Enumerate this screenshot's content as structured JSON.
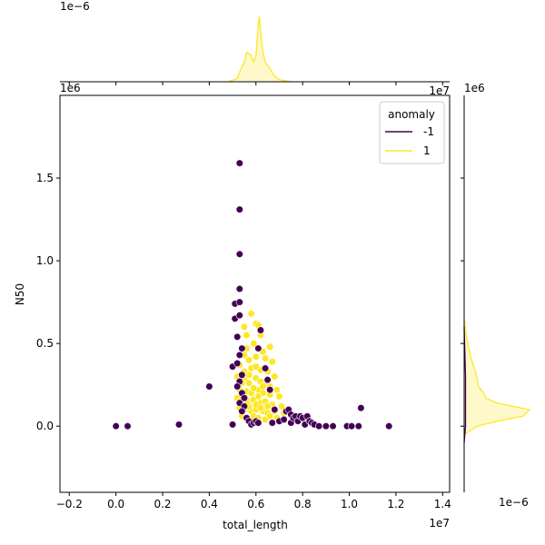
{
  "chart_data": {
    "type": "scatter",
    "title": "",
    "xlabel": "total_length",
    "ylabel": "N50",
    "x_exponent": "1e7",
    "y_exponent": "1e6",
    "top_marginal_exponent": "1e−6",
    "right_marginal_exponent_top": "1e6",
    "right_marginal_exponent_bottom": "1e−6",
    "xlim": [
      -0.24,
      1.43
    ],
    "ylim": [
      -0.4,
      2.0
    ],
    "xticks": [
      -0.2,
      0.0,
      0.2,
      0.4,
      0.6,
      0.8,
      1.0,
      1.2,
      1.4
    ],
    "xtick_labels": [
      "−0.2",
      "0.0",
      "0.2",
      "0.4",
      "0.6",
      "0.8",
      "1.0",
      "1.2",
      "1.4"
    ],
    "yticks": [
      0.0,
      0.5,
      1.0,
      1.5
    ],
    "ytick_labels": [
      "0.0",
      "0.5",
      "1.0",
      "1.5"
    ],
    "legend": {
      "title": "anomaly",
      "position": "upper-right",
      "entries": [
        {
          "label": "-1",
          "color": "#440154"
        },
        {
          "label": "1",
          "color": "#fde725"
        }
      ]
    },
    "series": [
      {
        "name": "-1",
        "color": "#440154",
        "points": [
          [
            0.0,
            0.0
          ],
          [
            0.05,
            0.0
          ],
          [
            0.27,
            0.01
          ],
          [
            0.4,
            0.24
          ],
          [
            0.5,
            0.01
          ],
          [
            0.51,
            0.74
          ],
          [
            0.51,
            0.65
          ],
          [
            0.5,
            0.36
          ],
          [
            0.53,
            1.59
          ],
          [
            0.53,
            1.31
          ],
          [
            0.53,
            1.04
          ],
          [
            0.53,
            0.83
          ],
          [
            0.53,
            0.75
          ],
          [
            0.53,
            0.67
          ],
          [
            0.52,
            0.54
          ],
          [
            0.54,
            0.47
          ],
          [
            0.53,
            0.43
          ],
          [
            0.52,
            0.38
          ],
          [
            0.54,
            0.31
          ],
          [
            0.53,
            0.27
          ],
          [
            0.52,
            0.24
          ],
          [
            0.54,
            0.2
          ],
          [
            0.55,
            0.17
          ],
          [
            0.53,
            0.14
          ],
          [
            0.55,
            0.12
          ],
          [
            0.54,
            0.09
          ],
          [
            0.56,
            0.05
          ],
          [
            0.57,
            0.03
          ],
          [
            0.58,
            0.01
          ],
          [
            0.59,
            0.02
          ],
          [
            0.6,
            0.03
          ],
          [
            0.61,
            0.47
          ],
          [
            0.62,
            0.58
          ],
          [
            0.61,
            0.02
          ],
          [
            0.64,
            0.35
          ],
          [
            0.65,
            0.28
          ],
          [
            0.66,
            0.22
          ],
          [
            0.67,
            0.02
          ],
          [
            0.68,
            0.1
          ],
          [
            0.7,
            0.03
          ],
          [
            0.72,
            0.04
          ],
          [
            0.73,
            0.09
          ],
          [
            0.74,
            0.1
          ],
          [
            0.75,
            0.07
          ],
          [
            0.75,
            0.02
          ],
          [
            0.76,
            0.05
          ],
          [
            0.77,
            0.06
          ],
          [
            0.78,
            0.03
          ],
          [
            0.79,
            0.06
          ],
          [
            0.8,
            0.05
          ],
          [
            0.81,
            0.01
          ],
          [
            0.82,
            0.06
          ],
          [
            0.83,
            0.03
          ],
          [
            0.84,
            0.02
          ],
          [
            0.85,
            0.01
          ],
          [
            0.87,
            0.0
          ],
          [
            0.9,
            0.0
          ],
          [
            0.93,
            0.0
          ],
          [
            0.99,
            0.0
          ],
          [
            1.01,
            0.0
          ],
          [
            1.04,
            0.0
          ],
          [
            1.05,
            0.11
          ],
          [
            1.17,
            0.0
          ]
        ]
      },
      {
        "name": "1",
        "color": "#fde725",
        "points": [
          [
            0.55,
            0.6
          ],
          [
            0.56,
            0.55
          ],
          [
            0.6,
            0.62
          ],
          [
            0.61,
            0.61
          ],
          [
            0.62,
            0.55
          ],
          [
            0.58,
            0.68
          ],
          [
            0.56,
            0.47
          ],
          [
            0.59,
            0.5
          ],
          [
            0.63,
            0.45
          ],
          [
            0.66,
            0.48
          ],
          [
            0.55,
            0.43
          ],
          [
            0.57,
            0.4
          ],
          [
            0.6,
            0.42
          ],
          [
            0.64,
            0.41
          ],
          [
            0.67,
            0.39
          ],
          [
            0.53,
            0.37
          ],
          [
            0.55,
            0.33
          ],
          [
            0.58,
            0.35
          ],
          [
            0.62,
            0.34
          ],
          [
            0.65,
            0.33
          ],
          [
            0.68,
            0.3
          ],
          [
            0.52,
            0.3
          ],
          [
            0.55,
            0.28
          ],
          [
            0.57,
            0.26
          ],
          [
            0.6,
            0.29
          ],
          [
            0.62,
            0.27
          ],
          [
            0.64,
            0.25
          ],
          [
            0.66,
            0.24
          ],
          [
            0.69,
            0.22
          ],
          [
            0.53,
            0.22
          ],
          [
            0.56,
            0.21
          ],
          [
            0.58,
            0.2
          ],
          [
            0.61,
            0.22
          ],
          [
            0.63,
            0.2
          ],
          [
            0.66,
            0.19
          ],
          [
            0.7,
            0.18
          ],
          [
            0.52,
            0.17
          ],
          [
            0.54,
            0.16
          ],
          [
            0.57,
            0.15
          ],
          [
            0.59,
            0.16
          ],
          [
            0.62,
            0.14
          ],
          [
            0.64,
            0.15
          ],
          [
            0.67,
            0.13
          ],
          [
            0.71,
            0.12
          ],
          [
            0.53,
            0.11
          ],
          [
            0.55,
            0.1
          ],
          [
            0.58,
            0.09
          ],
          [
            0.6,
            0.1
          ],
          [
            0.63,
            0.09
          ],
          [
            0.65,
            0.08
          ],
          [
            0.68,
            0.09
          ],
          [
            0.72,
            0.08
          ],
          [
            0.54,
            0.06
          ],
          [
            0.56,
            0.05
          ],
          [
            0.59,
            0.06
          ],
          [
            0.61,
            0.05
          ],
          [
            0.64,
            0.04
          ],
          [
            0.66,
            0.06
          ],
          [
            0.69,
            0.05
          ],
          [
            0.57,
            0.12
          ],
          [
            0.6,
            0.13
          ],
          [
            0.62,
            0.11
          ],
          [
            0.65,
            0.12
          ],
          [
            0.56,
            0.14
          ],
          [
            0.61,
            0.18
          ],
          [
            0.59,
            0.23
          ],
          [
            0.63,
            0.24
          ],
          [
            0.57,
            0.31
          ],
          [
            0.6,
            0.36
          ],
          [
            0.54,
            0.26
          ]
        ]
      }
    ],
    "top_marginal": {
      "type": "kde",
      "series": "1",
      "x": [
        0.48,
        0.52,
        0.53,
        0.55,
        0.56,
        0.575,
        0.59,
        0.6,
        0.61,
        0.615,
        0.62,
        0.63,
        0.64,
        0.66,
        0.68,
        0.7,
        0.75
      ],
      "density": [
        0.0,
        0.05,
        0.15,
        0.3,
        0.45,
        0.42,
        0.3,
        0.4,
        0.9,
        1.0,
        0.75,
        0.45,
        0.3,
        0.2,
        0.08,
        0.03,
        0.0
      ]
    },
    "right_marginal": {
      "type": "kde",
      "series": "1",
      "y": [
        -0.05,
        0.0,
        0.03,
        0.06,
        0.1,
        0.14,
        0.17,
        0.2,
        0.24,
        0.28,
        0.32,
        0.38,
        0.45,
        0.55,
        0.65
      ],
      "density": [
        0.0,
        0.2,
        0.5,
        0.9,
        1.0,
        0.5,
        0.33,
        0.3,
        0.22,
        0.2,
        0.18,
        0.13,
        0.08,
        0.03,
        0.0
      ]
    }
  }
}
